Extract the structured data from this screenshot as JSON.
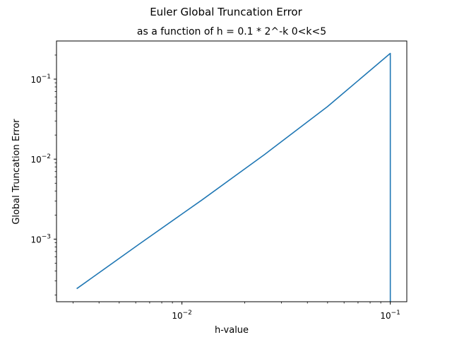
{
  "chart_data": {
    "type": "line",
    "title": "Euler Global Truncation Error",
    "subtitle": "as a function of h = 0.1 * 2^-k 0<k<5",
    "xlabel": "h-value",
    "ylabel": "Global Truncation Error",
    "xscale": "log",
    "yscale": "log",
    "xlim": [
      0.0025,
      0.12
    ],
    "ylim": [
      0.000165,
      0.3
    ],
    "grid": false,
    "legend": "none",
    "line_color": "#1f77b4",
    "x_major_ticks": [
      {
        "value": 0.01,
        "base": "10",
        "exp": "−2"
      },
      {
        "value": 0.1,
        "base": "10",
        "exp": "−1"
      }
    ],
    "y_major_ticks": [
      {
        "value": 0.001,
        "base": "10",
        "exp": "−3"
      },
      {
        "value": 0.01,
        "base": "10",
        "exp": "−2"
      },
      {
        "value": 0.1,
        "base": "10",
        "exp": "−1"
      }
    ],
    "series": [
      {
        "x": [
          0.003125,
          0.00625,
          0.0125,
          0.025,
          0.05,
          0.1,
          0.1
        ],
        "y": [
          0.00024,
          0.00087,
          0.0031,
          0.0115,
          0.0455,
          0.21,
          0.000165
        ]
      }
    ]
  }
}
